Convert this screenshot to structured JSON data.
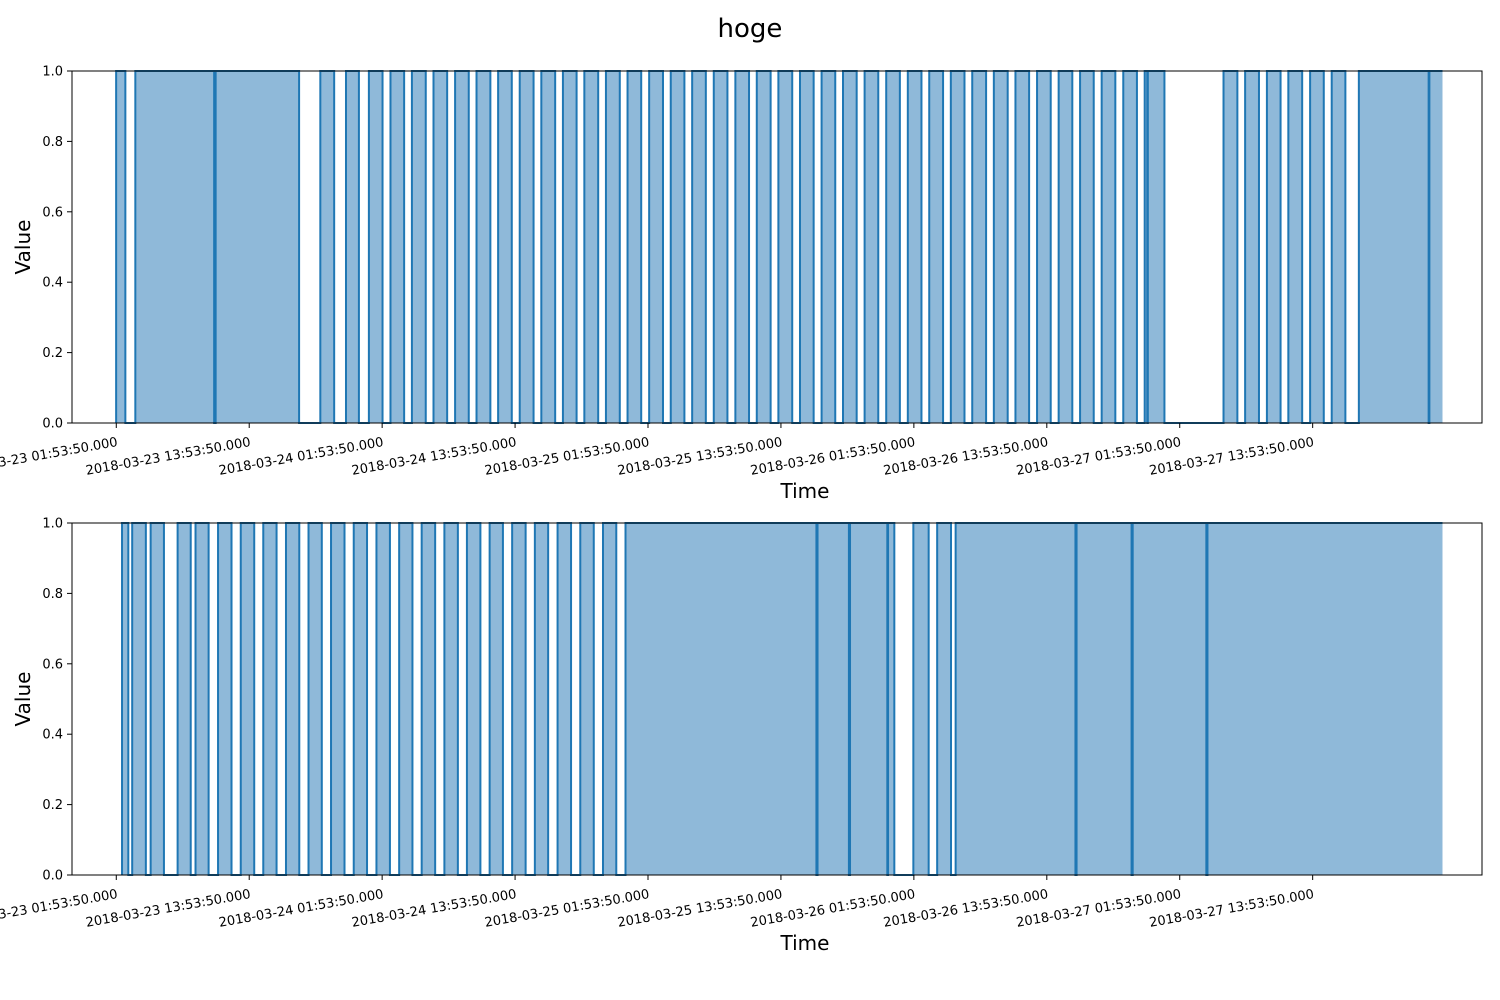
{
  "title": "hoge",
  "colors": {
    "fill": "#8fb9d9",
    "line": "#1f77b4"
  },
  "chart_data": [
    {
      "type": "area",
      "xlabel": "Time",
      "ylabel": "Value",
      "xlim": [
        "2018-03-22 21:54",
        "2018-03-28 05:11"
      ],
      "ylim": [
        0,
        1
      ],
      "yticks": [
        "0.0",
        "0.2",
        "0.4",
        "0.6",
        "0.8",
        "1.0"
      ],
      "xticks": [
        "2018-03-23 01:53:50.000",
        "2018-03-23 13:53:50.000",
        "2018-03-24 01:53:50.000",
        "2018-03-24 13:53:50.000",
        "2018-03-25 01:53:50.000",
        "2018-03-25 13:53:50.000",
        "2018-03-26 01:53:50.000",
        "2018-03-26 13:53:50.000",
        "2018-03-27 01:53:50.000",
        "2018-03-27 13:53:50.000"
      ],
      "series": [
        {
          "intervals_value_1": [
            [
              "2018-03-23 01:53",
              "2018-03-23 02:43"
            ],
            [
              "2018-03-23 03:37",
              "2018-03-23 10:44"
            ],
            [
              "2018-03-23 10:52",
              "2018-03-23 18:24"
            ],
            [
              "2018-03-23 20:19",
              "2018-03-23 21:34"
            ],
            [
              "2018-03-23 22:38",
              "2018-03-23 23:48"
            ],
            [
              "2018-03-24 00:42",
              "2018-03-24 01:56"
            ],
            [
              "2018-03-24 02:39",
              "2018-03-24 03:53"
            ],
            [
              "2018-03-24 04:35",
              "2018-03-24 05:50"
            ],
            [
              "2018-03-24 06:32",
              "2018-03-24 07:46"
            ],
            [
              "2018-03-24 08:29",
              "2018-03-24 09:43"
            ],
            [
              "2018-03-24 10:25",
              "2018-03-24 11:40"
            ],
            [
              "2018-03-24 12:22",
              "2018-03-24 13:36"
            ],
            [
              "2018-03-24 14:19",
              "2018-03-24 15:34"
            ],
            [
              "2018-03-24 16:16",
              "2018-03-24 17:31"
            ],
            [
              "2018-03-24 18:13",
              "2018-03-24 19:27"
            ],
            [
              "2018-03-24 20:09",
              "2018-03-24 21:24"
            ],
            [
              "2018-03-24 22:06",
              "2018-03-24 23:21"
            ],
            [
              "2018-03-25 00:03",
              "2018-03-25 01:17"
            ],
            [
              "2018-03-25 02:00",
              "2018-03-25 03:15"
            ],
            [
              "2018-03-25 03:57",
              "2018-03-25 05:11"
            ],
            [
              "2018-03-25 05:53",
              "2018-03-25 07:07"
            ],
            [
              "2018-03-25 07:50",
              "2018-03-25 09:04"
            ],
            [
              "2018-03-25 09:47",
              "2018-03-25 11:01"
            ],
            [
              "2018-03-25 11:43",
              "2018-03-25 12:58"
            ],
            [
              "2018-03-25 13:40",
              "2018-03-25 14:55"
            ],
            [
              "2018-03-25 15:37",
              "2018-03-25 16:51"
            ],
            [
              "2018-03-25 17:34",
              "2018-03-25 18:48"
            ],
            [
              "2018-03-25 19:30",
              "2018-03-25 20:44"
            ],
            [
              "2018-03-25 21:27",
              "2018-03-25 22:41"
            ],
            [
              "2018-03-25 23:24",
              "2018-03-26 00:38"
            ],
            [
              "2018-03-26 01:21",
              "2018-03-26 02:35"
            ],
            [
              "2018-03-26 03:17",
              "2018-03-26 04:32"
            ],
            [
              "2018-03-26 05:14",
              "2018-03-26 06:28"
            ],
            [
              "2018-03-26 07:10",
              "2018-03-26 08:25"
            ],
            [
              "2018-03-26 09:07",
              "2018-03-26 10:22"
            ],
            [
              "2018-03-26 11:04",
              "2018-03-26 12:18"
            ],
            [
              "2018-03-26 13:01",
              "2018-03-26 14:15"
            ],
            [
              "2018-03-26 14:58",
              "2018-03-26 16:12"
            ],
            [
              "2018-03-26 16:54",
              "2018-03-26 18:08"
            ],
            [
              "2018-03-26 18:51",
              "2018-03-26 20:05"
            ],
            [
              "2018-03-26 20:48",
              "2018-03-26 22:02"
            ],
            [
              "2018-03-26 22:44",
              "2018-03-26 22:58"
            ],
            [
              "2018-03-26 23:01",
              "2018-03-27 00:31"
            ],
            [
              "2018-03-27 05:51",
              "2018-03-27 07:06"
            ],
            [
              "2018-03-27 07:48",
              "2018-03-27 09:03"
            ],
            [
              "2018-03-27 09:46",
              "2018-03-27 11:00"
            ],
            [
              "2018-03-27 11:42",
              "2018-03-27 12:57"
            ],
            [
              "2018-03-27 13:40",
              "2018-03-27 14:54"
            ],
            [
              "2018-03-27 15:37",
              "2018-03-27 16:51"
            ],
            [
              "2018-03-27 18:04",
              "2018-03-28 00:22"
            ],
            [
              "2018-03-28 00:26",
              "2018-03-28 01:37"
            ]
          ]
        }
      ]
    },
    {
      "type": "area",
      "xlabel": "Time",
      "ylabel": "Value",
      "xlim": [
        "2018-03-22 21:54",
        "2018-03-28 05:11"
      ],
      "ylim": [
        0,
        1
      ],
      "yticks": [
        "0.0",
        "0.2",
        "0.4",
        "0.6",
        "0.8",
        "1.0"
      ],
      "xticks": [
        "2018-03-23 01:53:50.000",
        "2018-03-23 13:53:50.000",
        "2018-03-24 01:53:50.000",
        "2018-03-24 13:53:50.000",
        "2018-03-25 01:53:50.000",
        "2018-03-25 13:53:50.000",
        "2018-03-26 01:53:50.000",
        "2018-03-26 13:53:50.000",
        "2018-03-27 01:53:50.000",
        "2018-03-27 13:53:50.000"
      ],
      "series": [
        {
          "intervals_value_1": [
            [
              "2018-03-23 02:25",
              "2018-03-23 02:59"
            ],
            [
              "2018-03-23 03:20",
              "2018-03-23 04:34"
            ],
            [
              "2018-03-23 05:00",
              "2018-03-23 06:12"
            ],
            [
              "2018-03-23 07:26",
              "2018-03-23 08:37"
            ],
            [
              "2018-03-23 09:03",
              "2018-03-23 10:14"
            ],
            [
              "2018-03-23 11:05",
              "2018-03-23 12:18"
            ],
            [
              "2018-03-23 13:08",
              "2018-03-23 14:21"
            ],
            [
              "2018-03-23 15:10",
              "2018-03-23 16:22"
            ],
            [
              "2018-03-23 17:13",
              "2018-03-23 18:25"
            ],
            [
              "2018-03-23 19:15",
              "2018-03-23 20:27"
            ],
            [
              "2018-03-23 21:17",
              "2018-03-23 22:30"
            ],
            [
              "2018-03-23 23:20",
              "2018-03-24 00:32"
            ],
            [
              "2018-03-24 01:23",
              "2018-03-24 02:36"
            ],
            [
              "2018-03-24 03:26",
              "2018-03-24 04:38"
            ],
            [
              "2018-03-24 05:28",
              "2018-03-24 06:41"
            ],
            [
              "2018-03-24 07:31",
              "2018-03-24 08:44"
            ],
            [
              "2018-03-24 09:33",
              "2018-03-24 10:46"
            ],
            [
              "2018-03-24 11:36",
              "2018-03-24 12:48"
            ],
            [
              "2018-03-24 13:38",
              "2018-03-24 14:51"
            ],
            [
              "2018-03-24 15:41",
              "2018-03-24 16:53"
            ],
            [
              "2018-03-24 17:44",
              "2018-03-24 18:57"
            ],
            [
              "2018-03-24 19:47",
              "2018-03-24 21:00"
            ],
            [
              "2018-03-24 21:50",
              "2018-03-24 23:02"
            ],
            [
              "2018-03-24 23:52",
              "2018-03-25 17:06"
            ],
            [
              "2018-03-25 17:12",
              "2018-03-25 20:02"
            ],
            [
              "2018-03-25 20:08",
              "2018-03-25 23:30"
            ],
            [
              "2018-03-25 23:34",
              "2018-03-26 00:08"
            ],
            [
              "2018-03-26 01:51",
              "2018-03-26 03:14"
            ],
            [
              "2018-03-26 04:00",
              "2018-03-26 05:15"
            ],
            [
              "2018-03-26 05:40",
              "2018-03-26 16:29"
            ],
            [
              "2018-03-26 16:35",
              "2018-03-26 21:33"
            ],
            [
              "2018-03-26 21:39",
              "2018-03-27 04:18"
            ],
            [
              "2018-03-27 04:24",
              "2018-03-28 01:37"
            ]
          ]
        }
      ]
    }
  ]
}
